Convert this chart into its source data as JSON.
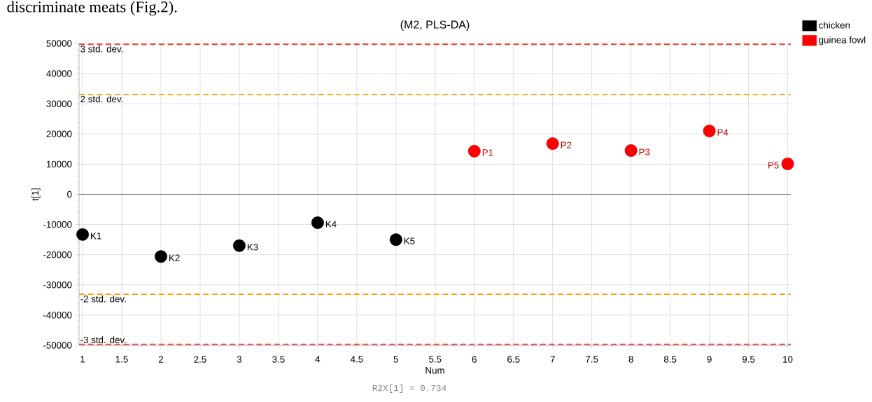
{
  "chart_data": {
    "type": "scatter",
    "title": "(M2, PLS-DA)",
    "xlabel": "Num",
    "ylabel": "t[1]",
    "xlim": [
      0.955,
      10.04
    ],
    "ylim": [
      -50000,
      50000
    ],
    "xticks": [
      1,
      1.5,
      2,
      2.5,
      3,
      3.5,
      4,
      4.5,
      5,
      5.5,
      6,
      6.5,
      7,
      7.5,
      8,
      8.5,
      9,
      9.5,
      10
    ],
    "yticks": [
      -50000,
      -40000,
      -30000,
      -20000,
      -10000,
      0,
      10000,
      20000,
      30000,
      40000,
      50000
    ],
    "grid": true,
    "legend": "top right",
    "marker": "circle",
    "series": [
      {
        "name": "chicken",
        "color": "#000000",
        "x": [
          1,
          2,
          3,
          4,
          5
        ],
        "values": [
          -13300,
          -20600,
          -17000,
          -9400,
          -15000
        ]
      },
      {
        "name": "guinea fowl",
        "color": "#ff0000",
        "x": [
          6,
          7,
          8,
          9,
          10
        ],
        "values": [
          14300,
          16800,
          14500,
          21000,
          10100
        ]
      }
    ],
    "ref_lines": [
      {
        "axis": "y",
        "value": 49700,
        "label": "3 std. dev.",
        "color": "#ee4035",
        "line_style": "dashed"
      },
      {
        "axis": "y",
        "value": 33100,
        "label": "2 std. dev.",
        "color": "#ffa000",
        "line_style": "dashed"
      },
      {
        "axis": "y",
        "value": 0,
        "color": "#707070",
        "line_style": "solid"
      },
      {
        "axis": "y",
        "value": -33100,
        "label": "-2 std. dev.",
        "color": "#ffa000",
        "line_style": "dashed"
      },
      {
        "axis": "y",
        "value": -49700,
        "label": "-3 std. dev.",
        "color": "#ee4035",
        "line_style": "dashed"
      }
    ],
    "annotations": [
      "R2X[1] = 0.734",
      "discriminate meats (Fig.2).",
      {
        "text": "K1",
        "x": 1,
        "y": -13300
      },
      {
        "text": "K2",
        "x": 2,
        "y": -20600
      },
      {
        "text": "K3",
        "x": 3,
        "y": -17000
      },
      {
        "text": "K4",
        "x": 4,
        "y": -9400
      },
      {
        "text": "K5",
        "x": 5,
        "y": -15000
      },
      {
        "text": "P1",
        "x": 6,
        "y": 14300
      },
      {
        "text": "P2",
        "x": 7,
        "y": 16800
      },
      {
        "text": "P3",
        "x": 8,
        "y": 14500
      },
      {
        "text": "P4",
        "x": 9,
        "y": 21000
      },
      {
        "text": "P5",
        "x": 10,
        "y": 10100
      }
    ]
  }
}
